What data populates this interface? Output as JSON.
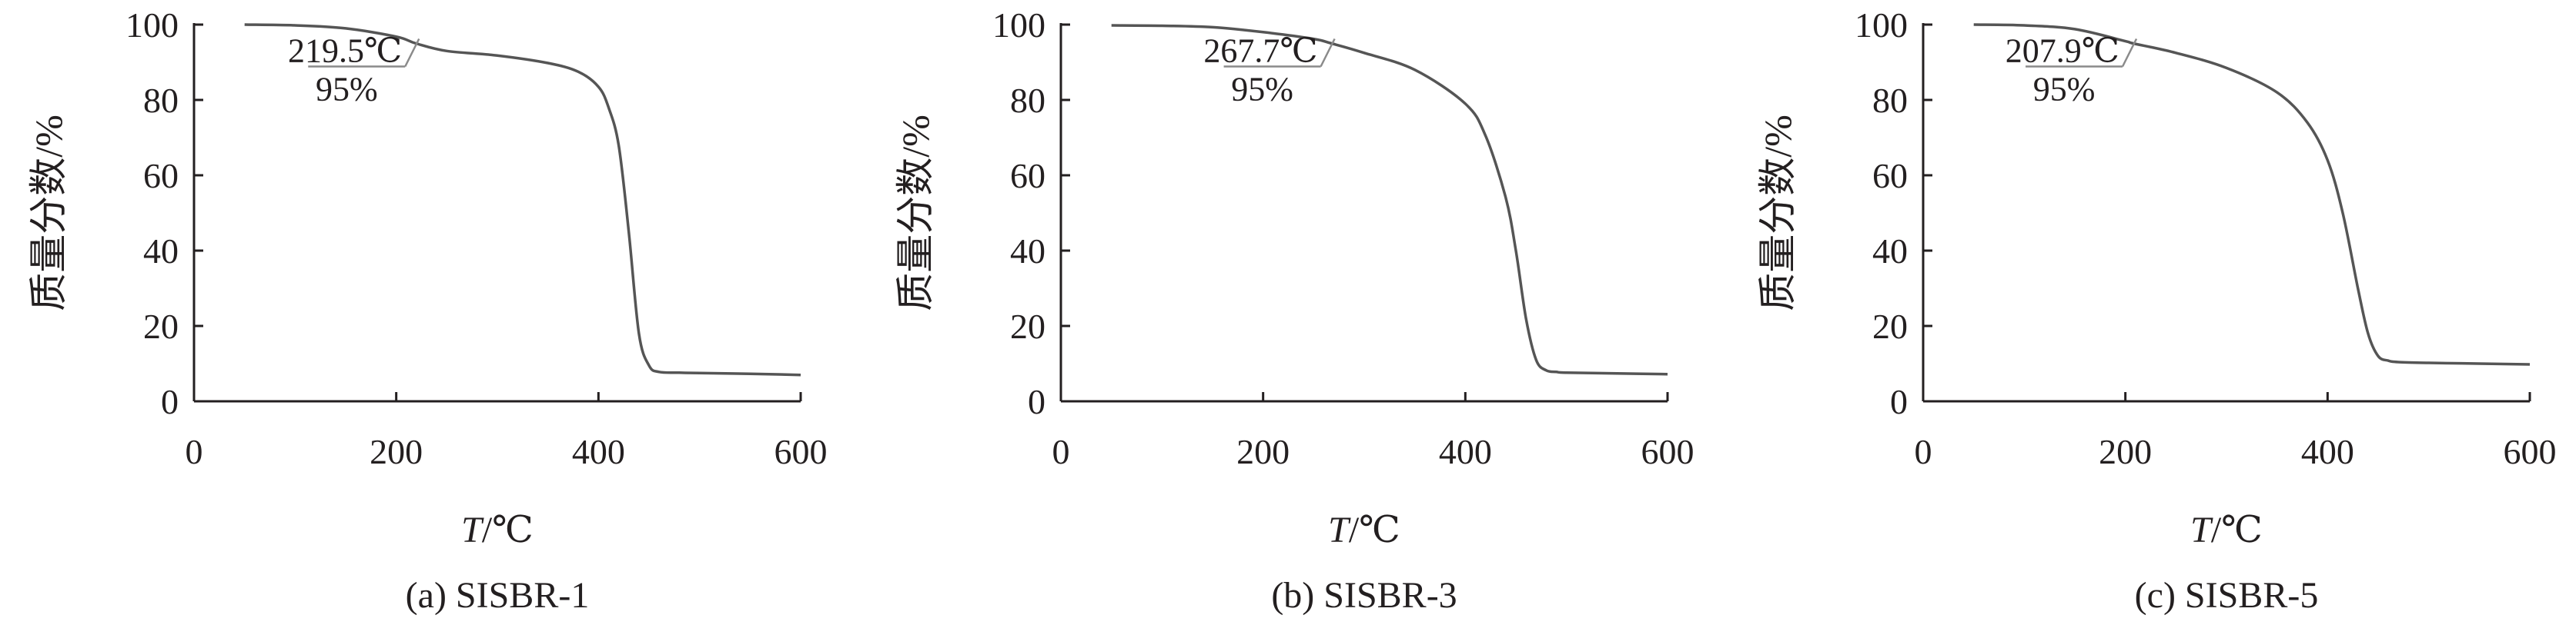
{
  "chart_data": [
    {
      "type": "line",
      "xlabel_italic": "T",
      "xlabel_unit": "/℃",
      "ylabel": "质量分数/%",
      "xlim": [
        0,
        600
      ],
      "ylim": [
        0,
        100
      ],
      "xticks": [
        "0",
        "200",
        "400",
        "600"
      ],
      "yticks": [
        "0",
        "20",
        "40",
        "60",
        "80",
        "100"
      ],
      "grid": false,
      "annotation": {
        "temp_label": "219.5℃",
        "pct_label": "95%",
        "x": 219.5,
        "y": 95
      },
      "caption": "(a) SISBR-1",
      "series": [
        {
          "x": [
            50,
            100,
            150,
            200,
            219.5,
            250,
            300,
            350,
            380,
            400,
            410,
            420,
            430,
            440,
            450,
            460,
            480,
            500,
            550,
            600
          ],
          "y": [
            100,
            99.8,
            99,
            96.8,
            95,
            93,
            91.8,
            89.8,
            87.5,
            83.5,
            78,
            68,
            45,
            18,
            9.5,
            7.8,
            7.6,
            7.5,
            7.3,
            7
          ]
        }
      ]
    },
    {
      "type": "line",
      "xlabel_italic": "T",
      "xlabel_unit": "/℃",
      "ylabel": "质量分数/%",
      "xlim": [
        0,
        600
      ],
      "ylim": [
        0,
        100
      ],
      "xticks": [
        "0",
        "200",
        "400",
        "600"
      ],
      "yticks": [
        "0",
        "20",
        "40",
        "60",
        "80",
        "100"
      ],
      "grid": false,
      "annotation": {
        "temp_label": "267.7℃",
        "pct_label": "95%",
        "x": 267.7,
        "y": 95
      },
      "caption": "(b) SISBR-3",
      "series": [
        {
          "x": [
            50,
            100,
            150,
            200,
            250,
            267.7,
            300,
            350,
            400,
            420,
            440,
            450,
            460,
            470,
            480,
            490,
            500,
            550,
            600
          ],
          "y": [
            99.8,
            99.7,
            99.3,
            98,
            96.2,
            95,
            92.5,
            88,
            79,
            70.5,
            54,
            40,
            22,
            11,
            8.2,
            7.8,
            7.6,
            7.4,
            7.2
          ]
        }
      ]
    },
    {
      "type": "line",
      "xlabel_italic": "T",
      "xlabel_unit": "/℃",
      "ylabel": "质量分数/%",
      "xlim": [
        0,
        600
      ],
      "ylim": [
        0,
        100
      ],
      "xticks": [
        "0",
        "200",
        "400",
        "600"
      ],
      "yticks": [
        "0",
        "20",
        "40",
        "60",
        "80",
        "100"
      ],
      "grid": false,
      "annotation": {
        "temp_label": "207.9℃",
        "pct_label": "95%",
        "x": 207.9,
        "y": 95
      },
      "caption": "(c) SISBR-5",
      "series": [
        {
          "x": [
            50,
            100,
            150,
            200,
            207.9,
            250,
            300,
            350,
            380,
            400,
            415,
            430,
            440,
            450,
            460,
            470,
            500,
            550,
            600
          ],
          "y": [
            100,
            99.8,
            98.8,
            95.6,
            95,
            92.5,
            88.5,
            82,
            74,
            64,
            50,
            30,
            18,
            12,
            10.8,
            10.4,
            10.2,
            10,
            9.8
          ]
        }
      ]
    }
  ]
}
